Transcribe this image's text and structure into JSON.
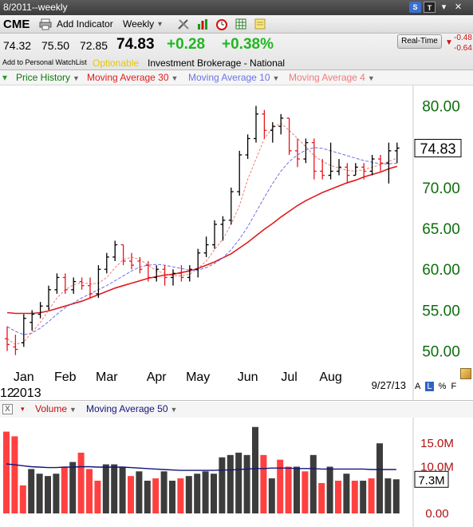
{
  "titlebar": {
    "title": "8/2011--weekly",
    "s_button": "S",
    "t_button": "T",
    "menu_arrow": "▾",
    "close": "✕"
  },
  "toolbar": {
    "symbol": "CME",
    "add_indicator": "Add Indicator",
    "period": "Weekly",
    "period_arrow": "▾"
  },
  "quote": {
    "open": "74.32",
    "high": "75.50",
    "low": "72.85",
    "last": "74.83",
    "change": "+0.28",
    "change_pct": "+0.38%",
    "watchlist_link": "Add to Personal WatchList",
    "optionable": "Optionable",
    "category": "Investment Brokerage - National",
    "realtime_button": "Real-Time",
    "rt_change_1": "-0.48",
    "rt_change_2": "-0.64"
  },
  "legend": {
    "price_history": "Price History",
    "ma30": "Moving Average 30",
    "ma10": "Moving Average 10",
    "ma4": "Moving Average 4"
  },
  "volume_legend": {
    "close_icon": "X",
    "volume": "Volume",
    "ma50": "Moving Average 50"
  },
  "side_icons": {
    "a": "A",
    "l": "L",
    "pct": "%",
    "f": "F"
  },
  "colors": {
    "up": "#000000",
    "down": "#e8141c",
    "ma30": "#e01b1b",
    "ma10": "#6c73e6",
    "ma4": "#f07a7a",
    "vol_up": "#3c3c3c",
    "vol_down": "#ff4040",
    "vol_ma50": "#14147a",
    "axis_green": "#0d6e0d",
    "axis_red": "#b01010"
  },
  "chart_data": [
    {
      "type": "ohlc",
      "x_labels": [
        "Jan",
        "Feb",
        "Mar",
        "Apr",
        "May",
        "Jun",
        "Jul",
        "Aug"
      ],
      "x_label_bar_index": [
        2,
        7,
        12,
        18,
        23,
        29,
        34,
        39
      ],
      "year_label": "2013",
      "left_label": "12",
      "date_label": "9/27/13",
      "ylim": [
        48,
        82
      ],
      "yticks": [
        50,
        55,
        60,
        65,
        70,
        75,
        80
      ],
      "ytick_labels": [
        "50.00",
        "55.00",
        "60.00",
        "65.00",
        "70.00",
        "",
        "80.00"
      ],
      "last_price_label": "74.83",
      "last_price": 74.83,
      "bars": [
        {
          "o": 51.5,
          "h": 53.0,
          "l": 50.0,
          "c": 50.8
        },
        {
          "o": 50.5,
          "h": 52.0,
          "l": 49.5,
          "c": 50.2
        },
        {
          "o": 51.0,
          "h": 54.5,
          "l": 50.5,
          "c": 54.0
        },
        {
          "o": 53.5,
          "h": 55.0,
          "l": 52.5,
          "c": 54.5
        },
        {
          "o": 54.5,
          "h": 56.0,
          "l": 54.0,
          "c": 55.5
        },
        {
          "o": 55.5,
          "h": 58.0,
          "l": 55.0,
          "c": 57.5
        },
        {
          "o": 57.5,
          "h": 59.5,
          "l": 57.0,
          "c": 59.0
        },
        {
          "o": 59.0,
          "h": 59.5,
          "l": 57.0,
          "c": 57.5
        },
        {
          "o": 57.5,
          "h": 59.0,
          "l": 57.0,
          "c": 58.5
        },
        {
          "o": 58.5,
          "h": 59.0,
          "l": 57.5,
          "c": 58.0
        },
        {
          "o": 58.0,
          "h": 59.0,
          "l": 56.5,
          "c": 57.0
        },
        {
          "o": 57.0,
          "h": 60.5,
          "l": 56.5,
          "c": 60.0
        },
        {
          "o": 60.0,
          "h": 62.0,
          "l": 59.5,
          "c": 61.5
        },
        {
          "o": 61.5,
          "h": 63.5,
          "l": 61.0,
          "c": 63.0
        },
        {
          "o": 63.0,
          "h": 63.0,
          "l": 60.5,
          "c": 61.0
        },
        {
          "o": 61.0,
          "h": 62.0,
          "l": 60.0,
          "c": 60.5
        },
        {
          "o": 61.0,
          "h": 61.5,
          "l": 59.5,
          "c": 60.0
        },
        {
          "o": 60.5,
          "h": 61.0,
          "l": 58.5,
          "c": 59.0
        },
        {
          "o": 59.0,
          "h": 60.5,
          "l": 58.5,
          "c": 60.0
        },
        {
          "o": 60.0,
          "h": 60.5,
          "l": 58.0,
          "c": 59.0
        },
        {
          "o": 59.0,
          "h": 60.0,
          "l": 58.0,
          "c": 59.5
        },
        {
          "o": 59.5,
          "h": 60.5,
          "l": 58.5,
          "c": 59.0
        },
        {
          "o": 59.0,
          "h": 60.5,
          "l": 58.5,
          "c": 60.0
        },
        {
          "o": 60.0,
          "h": 62.5,
          "l": 59.0,
          "c": 62.0
        },
        {
          "o": 62.0,
          "h": 64.0,
          "l": 61.5,
          "c": 63.0
        },
        {
          "o": 63.0,
          "h": 66.0,
          "l": 62.5,
          "c": 65.5
        },
        {
          "o": 65.5,
          "h": 66.5,
          "l": 63.5,
          "c": 66.0
        },
        {
          "o": 66.0,
          "h": 70.0,
          "l": 65.5,
          "c": 69.5
        },
        {
          "o": 69.5,
          "h": 74.5,
          "l": 69.0,
          "c": 74.0
        },
        {
          "o": 74.0,
          "h": 76.5,
          "l": 73.5,
          "c": 76.0
        },
        {
          "o": 76.0,
          "h": 80.0,
          "l": 75.5,
          "c": 79.0
        },
        {
          "o": 79.0,
          "h": 79.5,
          "l": 76.0,
          "c": 77.0
        },
        {
          "o": 77.0,
          "h": 78.0,
          "l": 75.5,
          "c": 77.5
        },
        {
          "o": 77.5,
          "h": 79.0,
          "l": 76.5,
          "c": 78.5
        },
        {
          "o": 78.5,
          "h": 78.5,
          "l": 74.0,
          "c": 74.5
        },
        {
          "o": 74.5,
          "h": 76.0,
          "l": 72.5,
          "c": 73.5
        },
        {
          "o": 73.5,
          "h": 76.0,
          "l": 73.0,
          "c": 75.5
        },
        {
          "o": 75.5,
          "h": 76.0,
          "l": 71.0,
          "c": 72.0
        },
        {
          "o": 72.0,
          "h": 73.5,
          "l": 71.0,
          "c": 71.5
        },
        {
          "o": 71.5,
          "h": 75.5,
          "l": 71.0,
          "c": 72.0
        },
        {
          "o": 72.0,
          "h": 73.5,
          "l": 71.5,
          "c": 72.5
        },
        {
          "o": 72.5,
          "h": 73.0,
          "l": 70.5,
          "c": 71.5
        },
        {
          "o": 71.5,
          "h": 73.0,
          "l": 71.5,
          "c": 72.5
        },
        {
          "o": 72.5,
          "h": 73.0,
          "l": 71.0,
          "c": 72.0
        },
        {
          "o": 72.0,
          "h": 74.0,
          "l": 71.5,
          "c": 73.5
        },
        {
          "o": 73.5,
          "h": 74.0,
          "l": 72.0,
          "c": 73.0
        },
        {
          "o": 73.0,
          "h": 75.5,
          "l": 70.5,
          "c": 74.5
        },
        {
          "o": 74.5,
          "h": 75.5,
          "l": 73.0,
          "c": 74.83
        }
      ],
      "ma30": [
        54.7,
        54.6,
        54.6,
        54.6,
        54.7,
        54.9,
        55.2,
        55.5,
        55.8,
        56.1,
        56.5,
        56.9,
        57.3,
        57.7,
        58.0,
        58.3,
        58.6,
        58.9,
        59.1,
        59.3,
        59.4,
        59.6,
        59.8,
        60.1,
        60.5,
        60.9,
        61.4,
        61.9,
        62.6,
        63.3,
        64.1,
        64.9,
        65.6,
        66.4,
        67.1,
        67.8,
        68.4,
        68.9,
        69.4,
        69.8,
        70.2,
        70.6,
        70.9,
        71.3,
        71.6,
        71.9,
        72.3,
        72.6
      ],
      "ma10": [
        53.0,
        52.4,
        52.0,
        52.2,
        52.8,
        53.6,
        54.5,
        55.3,
        55.9,
        56.5,
        57.0,
        57.5,
        58.0,
        58.6,
        59.2,
        59.8,
        60.3,
        60.5,
        60.6,
        60.5,
        60.3,
        60.1,
        59.9,
        59.9,
        60.2,
        60.7,
        61.4,
        62.4,
        63.7,
        65.2,
        67.0,
        68.8,
        70.5,
        72.0,
        73.2,
        74.0,
        74.6,
        74.9,
        74.8,
        74.5,
        74.2,
        73.9,
        73.6,
        73.3,
        73.1,
        72.9,
        72.9,
        73.0
      ],
      "ma4": [
        51.5,
        50.8,
        51.1,
        52.3,
        53.5,
        55.0,
        56.5,
        57.5,
        58.1,
        58.4,
        58.2,
        58.3,
        59.0,
        60.2,
        61.2,
        61.5,
        61.2,
        60.5,
        59.8,
        59.5,
        59.2,
        59.2,
        59.4,
        60.1,
        61.0,
        62.4,
        63.7,
        65.5,
        67.8,
        71.0,
        73.5,
        76.0,
        77.3,
        77.9,
        77.0,
        76.0,
        75.0,
        73.9,
        73.2,
        72.7,
        72.4,
        72.1,
        72.0,
        72.2,
        72.5,
        72.8,
        73.2,
        73.6
      ]
    },
    {
      "type": "bar",
      "series_name": "Volume",
      "ylim": [
        0,
        20
      ],
      "yticks": [
        0,
        5,
        10,
        15
      ],
      "ytick_labels": [
        "0.00",
        "",
        "10.0M",
        "15.0M"
      ],
      "last_value_label": "7.3M",
      "last_value": 7.3,
      "values": [
        17.5,
        16.5,
        6.0,
        9.5,
        8.5,
        8.0,
        8.5,
        10.0,
        11.0,
        13.0,
        9.5,
        7.0,
        10.5,
        10.5,
        10.0,
        8.0,
        9.0,
        7.0,
        7.5,
        9.0,
        7.0,
        7.5,
        8.0,
        8.5,
        9.0,
        8.5,
        12.0,
        12.5,
        13.0,
        12.5,
        18.5,
        12.5,
        7.5,
        11.5,
        10.0,
        10.0,
        9.0,
        12.5,
        6.5,
        10.0,
        7.0,
        8.5,
        7.0,
        7.0,
        7.5,
        15.0,
        7.5,
        7.3
      ],
      "up": [
        false,
        false,
        false,
        true,
        true,
        true,
        true,
        false,
        true,
        false,
        false,
        false,
        true,
        true,
        true,
        false,
        true,
        true,
        false,
        true,
        true,
        false,
        true,
        true,
        true,
        true,
        true,
        true,
        true,
        true,
        true,
        false,
        true,
        false,
        false,
        true,
        false,
        true,
        false,
        true,
        false,
        true,
        false,
        true,
        false,
        true,
        true,
        true
      ],
      "ma50": [
        10.6,
        10.4,
        10.2,
        10.0,
        9.9,
        9.8,
        9.8,
        9.9,
        9.9,
        10.0,
        10.0,
        9.9,
        9.9,
        9.9,
        9.9,
        9.8,
        9.7,
        9.6,
        9.5,
        9.4,
        9.3,
        9.2,
        9.2,
        9.2,
        9.2,
        9.2,
        9.3,
        9.3,
        9.4,
        9.5,
        9.6,
        9.6,
        9.7,
        9.7,
        9.7,
        9.6,
        9.6,
        9.6,
        9.5,
        9.5,
        9.5,
        9.5,
        9.5,
        9.5,
        9.4,
        9.4,
        9.4,
        9.4
      ]
    }
  ]
}
